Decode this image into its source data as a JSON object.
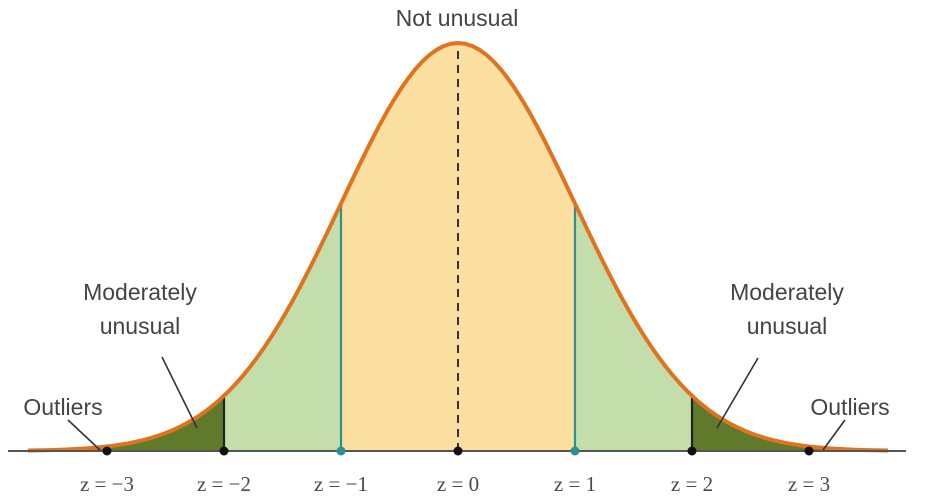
{
  "title": "Not unusual",
  "regions": {
    "center_label": "Not unusual",
    "moderate_left_line1": "Moderately",
    "moderate_left_line2": "unusual",
    "moderate_right_line1": "Moderately",
    "moderate_right_line2": "unusual",
    "outliers_left": "Outliers",
    "outliers_right": "Outliers"
  },
  "z_ticks": [
    {
      "z": -3,
      "label": "z = −3"
    },
    {
      "z": -2,
      "label": "z = −2"
    },
    {
      "z": -1,
      "label": "z = −1"
    },
    {
      "z": 0,
      "label": "z = 0"
    },
    {
      "z": 1,
      "label": "z = 1"
    },
    {
      "z": 2,
      "label": "z = 2"
    },
    {
      "z": 3,
      "label": "z = 3"
    }
  ],
  "colors": {
    "curve": "#e0731f",
    "center_fill": "#fbdfa0",
    "moderate_fill": "#c4deab",
    "outlier_fill": "#5f7a2b",
    "axis": "#555555",
    "inner_lines": "#2e8f8f",
    "outer_lines": "#222222",
    "dashed": "#333333"
  }
}
